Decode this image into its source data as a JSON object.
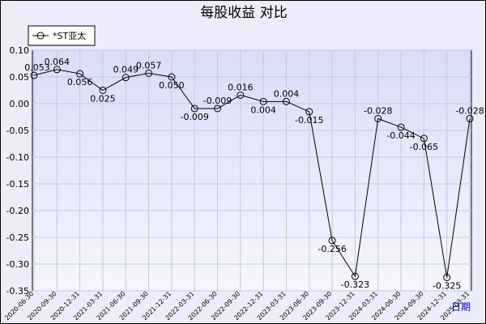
{
  "chart_data": {
    "type": "line",
    "title": "每股收益  对比",
    "xlabel": "日期",
    "ylabel": "",
    "ylim": [
      -0.35,
      0.1
    ],
    "y_ticks": [
      "0.10",
      "0.05",
      "0.00",
      "-0.05",
      "-0.10",
      "-0.15",
      "-0.20",
      "-0.25",
      "-0.30",
      "-0.35"
    ],
    "grid": true,
    "legend": "top-left",
    "categories": [
      "2020-06-30",
      "2020-09-30",
      "2020-12-31",
      "2021-03-31",
      "2021-06-30",
      "2021-09-30",
      "2021-12-31",
      "2022-03-31",
      "2022-06-30",
      "2022-09-30",
      "2022-12-31",
      "2023-03-31",
      "2023-06-30",
      "2023-09-30",
      "2023-12-31",
      "2024-03-31",
      "2024-06-30",
      "2024-09-30",
      "2024-12-31",
      "2025-03-31"
    ],
    "series": [
      {
        "name": "*ST亚太",
        "color": "#000000",
        "values": [
          0.053,
          0.064,
          0.056,
          0.025,
          0.049,
          0.057,
          0.05,
          -0.009,
          -0.009,
          0.016,
          0.004,
          0.004,
          -0.015,
          -0.256,
          -0.323,
          -0.028,
          -0.044,
          -0.065,
          -0.325,
          -0.028
        ],
        "labels": [
          "0.053",
          "0.064",
          "0.056",
          "0.025",
          "0.049",
          "0.057",
          "0.050",
          "-0.009",
          "-0.009",
          "0.016",
          "0.004",
          "0.004",
          "-0.015",
          "-0.256",
          "-0.323",
          "-0.028",
          "-0.044",
          "-0.065",
          "-0.325",
          "-0.028"
        ]
      }
    ],
    "colors": {
      "background": "#ececfb",
      "plot_top": "#d9ddf7",
      "plot_bottom": "#f6f6fd",
      "grid": "#c2c7ea",
      "line": "#000000"
    }
  }
}
